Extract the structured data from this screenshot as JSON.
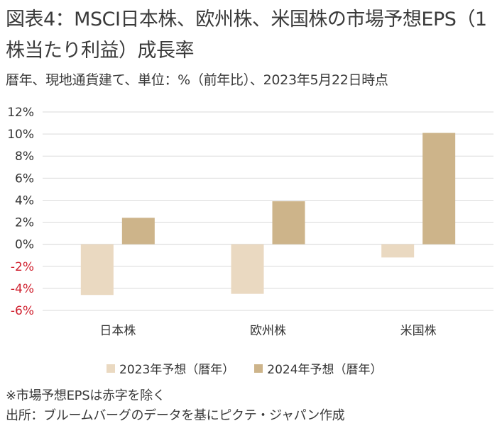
{
  "title": "図表4：MSCI日本株、欧州株、米国株の市場予想EPS（1株当たり利益）成長率",
  "subtitle": "暦年、現地通貨建て、単位：%（前年比）、2023年5月22日時点",
  "notes": {
    "line1": "※市場予想EPSは赤字を除く",
    "line2": "出所：ブルームバーグのデータを基にピクテ・ジャパン作成"
  },
  "colors": {
    "series_2023": "#ead9c1",
    "series_2024": "#cdb48a",
    "negative_tick": "#d0202e",
    "positive_tick": "#333333",
    "grid": "#d9d9d9"
  },
  "chart_data": {
    "type": "bar",
    "categories": [
      "日本株",
      "欧州株",
      "米国株"
    ],
    "series": [
      {
        "name": "2023年予想（暦年）",
        "values": [
          -4.6,
          -4.5,
          -1.2
        ]
      },
      {
        "name": "2024年予想（暦年）",
        "values": [
          2.4,
          3.9,
          10.1
        ]
      }
    ],
    "ylim": [
      -6,
      12
    ],
    "yticks": [
      "12%",
      "10%",
      "8%",
      "6%",
      "4%",
      "2%",
      "0%",
      "-2%",
      "-4%",
      "-6%"
    ],
    "ytick_values": [
      12,
      10,
      8,
      6,
      4,
      2,
      0,
      -2,
      -4,
      -6
    ],
    "grid": "horizontal",
    "legend": "bottom"
  }
}
